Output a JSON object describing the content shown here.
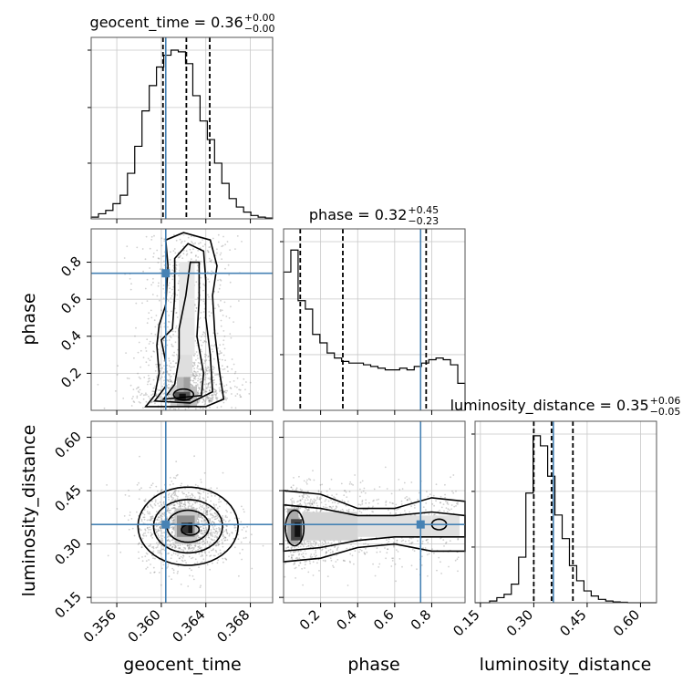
{
  "chart_data": {
    "type": "corner",
    "parameters": [
      "geocent_time",
      "phase",
      "luminosity_distance"
    ],
    "titles": [
      {
        "param": "geocent_time",
        "median": "0.36",
        "plus": "+0.00",
        "minus": "−0.00"
      },
      {
        "param": "phase",
        "median": "0.32",
        "plus": "+0.45",
        "minus": "−0.23"
      },
      {
        "param": "luminosity_distance",
        "median": "0.35",
        "plus": "+0.06",
        "minus": "−0.05"
      }
    ],
    "ranges": {
      "geocent_time": [
        0.3537,
        0.37
      ],
      "phase": [
        0.0,
        0.98
      ],
      "luminosity_distance": [
        0.135,
        0.645
      ]
    },
    "ticks": {
      "geocent_time": [
        "0.356",
        "0.360",
        "0.364",
        "0.368"
      ],
      "phase": [
        "0.2",
        "0.4",
        "0.6",
        "0.8"
      ],
      "luminosity_distance": [
        "0.15",
        "0.30",
        "0.45",
        "0.60"
      ]
    },
    "injection": {
      "geocent_time": 0.3604,
      "phase": 0.74,
      "luminosity_distance": 0.355
    },
    "quantiles": {
      "geocent_time": [
        0.36015,
        0.36225,
        0.36435
      ],
      "phase": [
        0.09,
        0.32,
        0.77
      ],
      "luminosity_distance": [
        0.3,
        0.35,
        0.41
      ]
    },
    "histograms": {
      "geocent_time": [
        0.01,
        0.03,
        0.05,
        0.09,
        0.14,
        0.27,
        0.43,
        0.64,
        0.79,
        0.9,
        0.97,
        1.0,
        0.99,
        0.92,
        0.73,
        0.58,
        0.47,
        0.33,
        0.21,
        0.12,
        0.07,
        0.04,
        0.02,
        0.01,
        0.005
      ],
      "phase": [
        0.82,
        0.95,
        0.65,
        0.6,
        0.45,
        0.4,
        0.34,
        0.31,
        0.29,
        0.28,
        0.28,
        0.27,
        0.26,
        0.25,
        0.24,
        0.24,
        0.25,
        0.24,
        0.26,
        0.28,
        0.3,
        0.31,
        0.3,
        0.27,
        0.16
      ],
      "luminosity_distance": [
        0.0,
        0.0,
        0.01,
        0.03,
        0.05,
        0.11,
        0.27,
        0.65,
        0.99,
        0.93,
        0.75,
        0.52,
        0.38,
        0.22,
        0.13,
        0.07,
        0.04,
        0.02,
        0.01,
        0.005,
        0.003,
        0.0,
        0.0,
        0.0,
        0.0
      ]
    },
    "colors": {
      "truth": "#4682b4",
      "hist": "#000000",
      "grid": "#c8c8c8"
    }
  }
}
